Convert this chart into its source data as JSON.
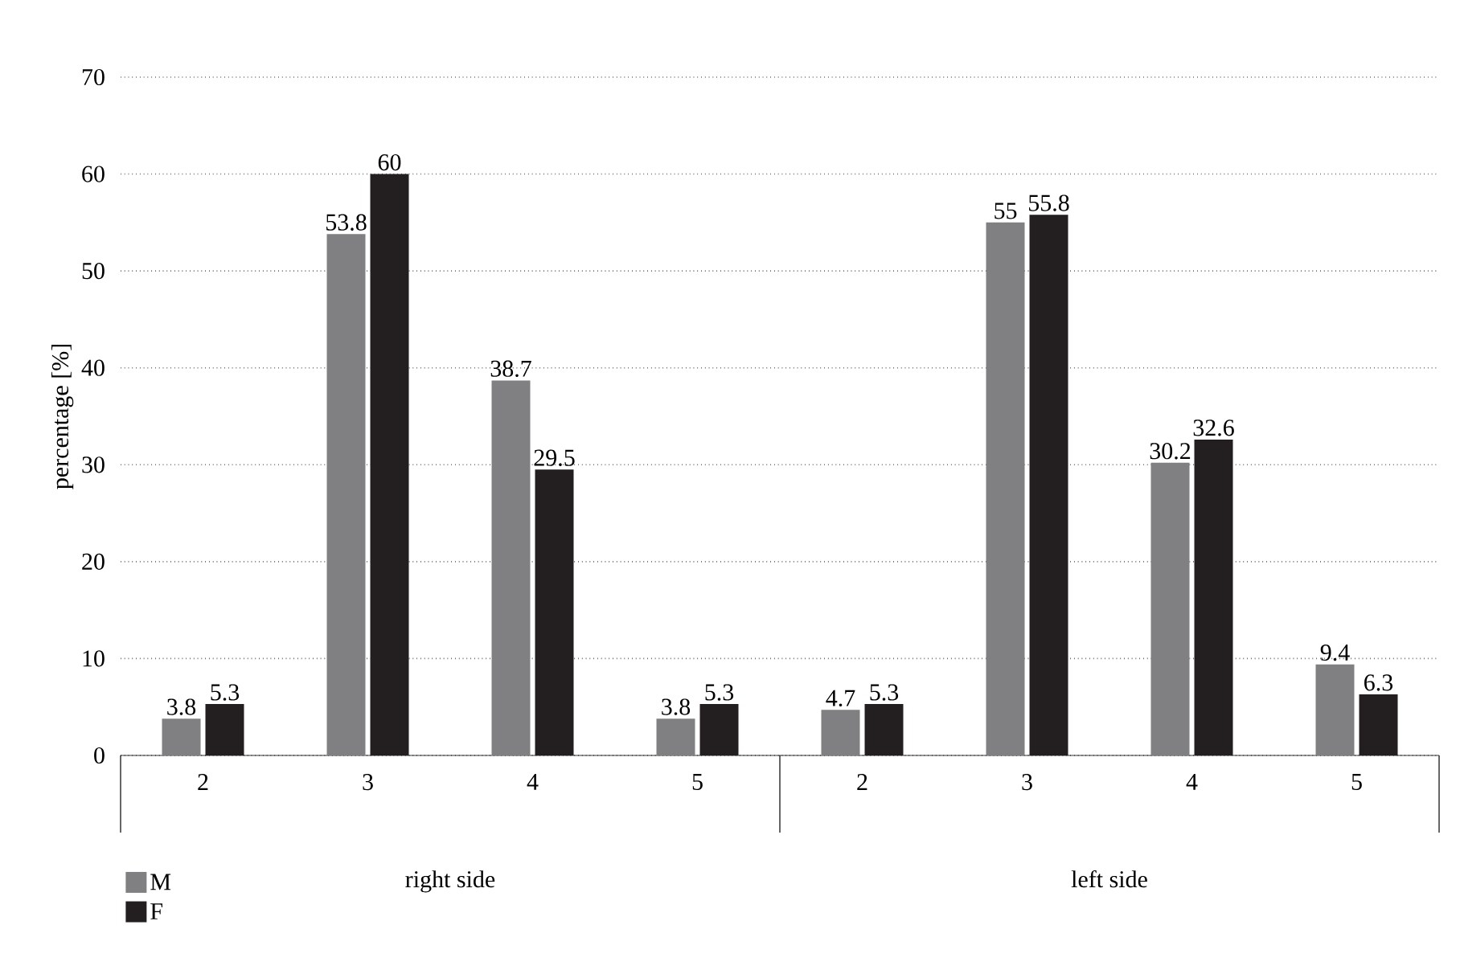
{
  "chart_data": {
    "type": "bar",
    "ylabel": "percentage [%]",
    "categories": [
      "2",
      "3",
      "4",
      "5",
      "2",
      "3",
      "4",
      "5"
    ],
    "series": [
      {
        "name": "M",
        "color": "#808083",
        "values": [
          3.8,
          53.8,
          38.7,
          3.8,
          4.7,
          55,
          30.2,
          9.4
        ]
      },
      {
        "name": "F",
        "color": "#231f20",
        "values": [
          5.3,
          60,
          29.5,
          5.3,
          5.3,
          55.8,
          32.6,
          6.3
        ]
      }
    ],
    "annotations": [
      "right side",
      "left side"
    ],
    "ylim": [
      0,
      70
    ],
    "yticks": [
      0,
      10,
      20,
      30,
      40,
      50,
      60,
      70
    ],
    "grid": "y",
    "legend": "bottom left",
    "data_labels": true
  }
}
